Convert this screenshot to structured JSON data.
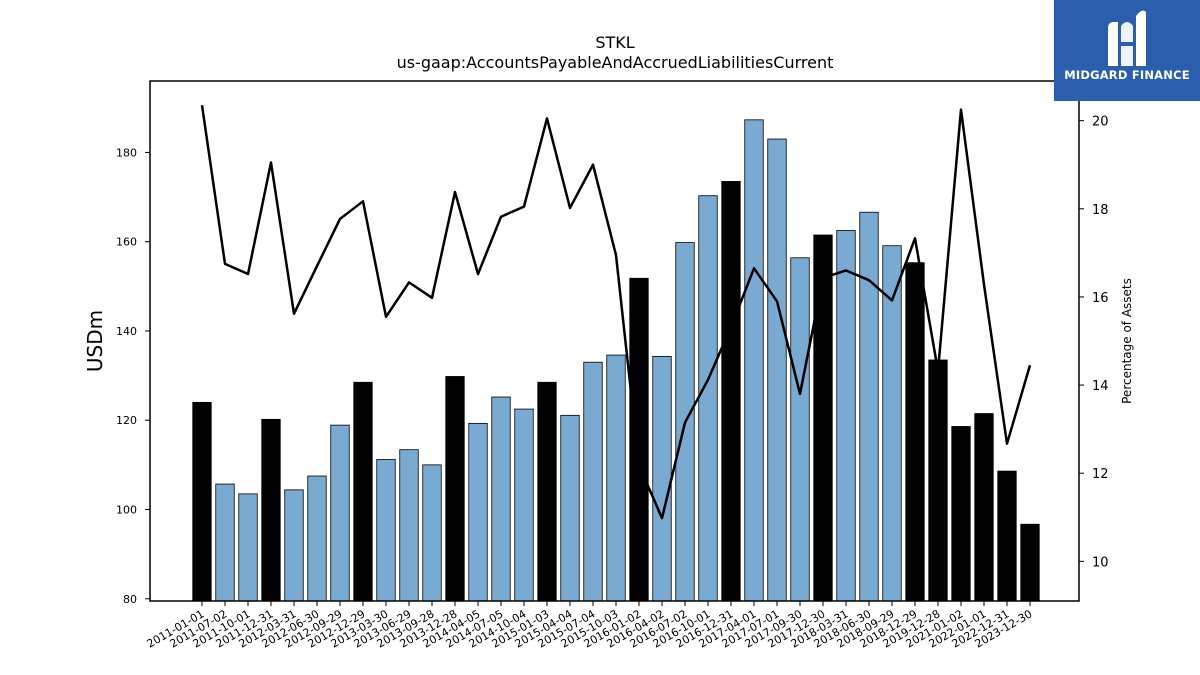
{
  "chart_data": {
    "type": "bar+line",
    "title": "STKL",
    "subtitle": "us-gaap:AccountsPayableAndAccruedLiabilitiesCurrent",
    "ylabel": "USDm",
    "y2label": "Percentage of Assets",
    "ylim": [
      79.5,
      196
    ],
    "y2lim": [
      9.1,
      20.9
    ],
    "yticks": [
      80,
      100,
      120,
      140,
      160,
      180
    ],
    "y2ticks": [
      10,
      12,
      14,
      16,
      18,
      20
    ],
    "grid": false,
    "categories": [
      "2011-01-01",
      "2011-07-02",
      "2011-10-01",
      "2011-12-31",
      "2012-03-31",
      "2012-06-30",
      "2012-09-29",
      "2012-12-29",
      "2013-03-30",
      "2013-06-29",
      "2013-09-28",
      "2013-12-28",
      "2014-04-05",
      "2014-07-05",
      "2014-10-04",
      "2015-01-03",
      "2015-04-04",
      "2015-07-04",
      "2015-10-03",
      "2016-01-02",
      "2016-04-02",
      "2016-07-02",
      "2016-10-01",
      "2016-12-31",
      "2017-04-01",
      "2017-07-01",
      "2017-09-30",
      "2017-12-30",
      "2018-03-31",
      "2018-06-30",
      "2018-09-29",
      "2018-12-29",
      "2019-12-28",
      "2021-01-02",
      "2022-01-01",
      "2022-12-31",
      "2023-12-30"
    ],
    "series": [
      {
        "type": "bar",
        "values": [
          124.0,
          105.7,
          103.5,
          120.2,
          104.4,
          107.5,
          118.9,
          128.5,
          111.2,
          113.4,
          110.0,
          129.8,
          119.3,
          125.2,
          122.5,
          128.5,
          121.1,
          133.0,
          134.6,
          151.8,
          134.3,
          159.8,
          170.3,
          173.5,
          187.3,
          183.0,
          156.4,
          161.5,
          162.5,
          166.6,
          159.1,
          155.3,
          133.5,
          118.6,
          121.5,
          108.6,
          96.7
        ],
        "highlight": [
          true,
          false,
          false,
          true,
          false,
          false,
          false,
          true,
          false,
          false,
          false,
          true,
          false,
          false,
          false,
          true,
          false,
          false,
          false,
          true,
          false,
          false,
          false,
          true,
          false,
          false,
          false,
          true,
          false,
          false,
          false,
          true,
          true,
          true,
          true,
          true,
          true
        ]
      },
      {
        "type": "line",
        "axis": "right",
        "values": [
          20.35,
          16.75,
          16.52,
          19.05,
          15.62,
          16.7,
          17.77,
          18.17,
          15.55,
          16.33,
          15.98,
          18.38,
          16.52,
          17.82,
          18.05,
          20.05,
          18.02,
          19.0,
          16.95,
          12.18,
          10.98,
          13.15,
          14.12,
          15.32,
          16.65,
          15.9,
          13.8,
          16.43,
          16.6,
          16.38,
          15.92,
          17.33,
          14.32,
          20.25,
          16.28,
          12.67,
          14.45
        ]
      }
    ],
    "colors": {
      "bar": "#7aaad2",
      "bar_highlight": "#000000",
      "line": "#000000"
    }
  },
  "logo": {
    "text": "MIDGARD FINANCE",
    "color": "#2b5fae"
  }
}
